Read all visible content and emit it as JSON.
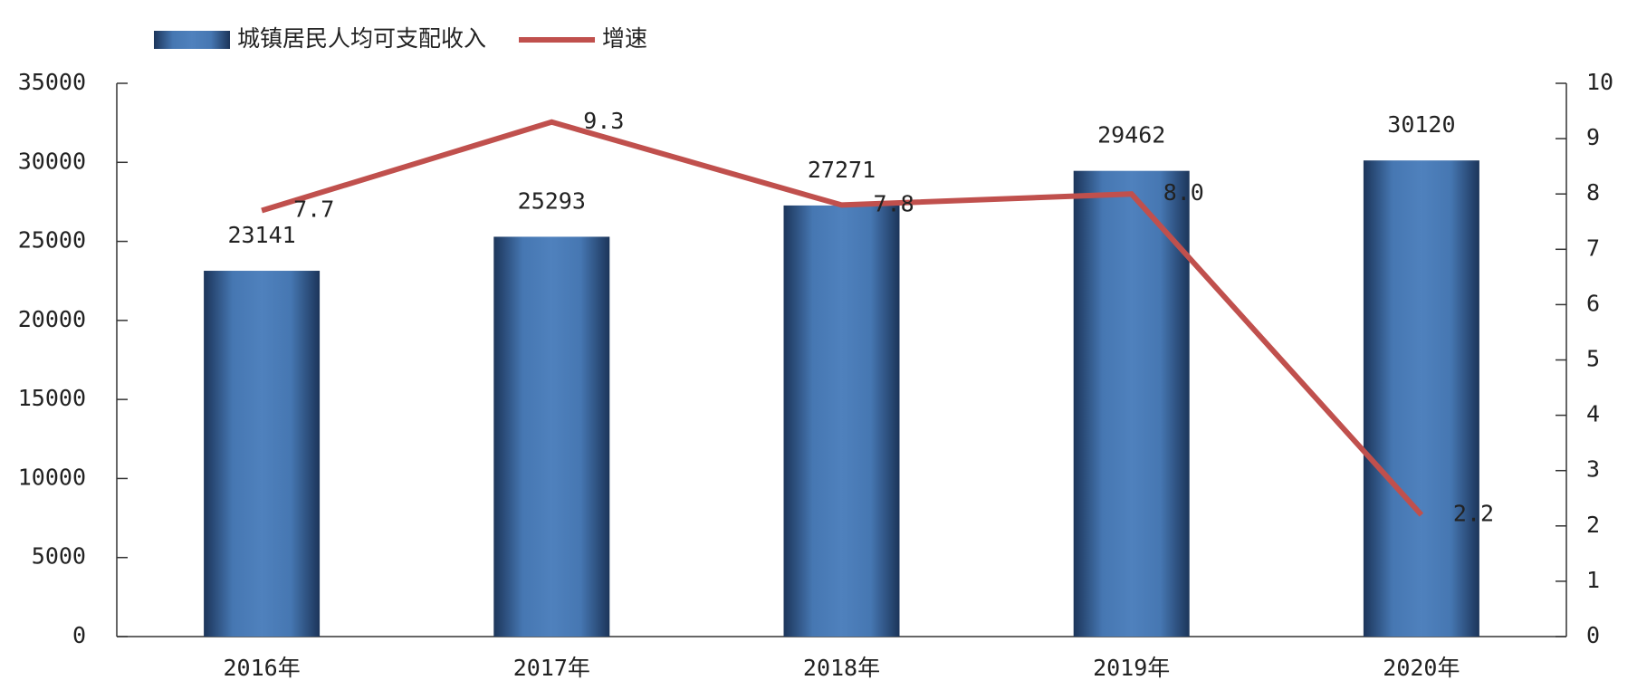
{
  "chart_data": {
    "type": "bar-line",
    "categories": [
      "2016年",
      "2017年",
      "2018年",
      "2019年",
      "2020年"
    ],
    "series": [
      {
        "name": "城镇居民人均可支配收入",
        "type": "bar",
        "color": "#4f81bd",
        "values": [
          23141,
          25293,
          27271,
          29462,
          30120
        ]
      },
      {
        "name": "增速",
        "type": "line",
        "axis": "y2",
        "color": "#c0504d",
        "values": [
          7.7,
          9.3,
          7.8,
          8.0,
          2.2
        ],
        "value_labels": [
          "7.7",
          "9.3",
          "7.8",
          "8.0",
          "2.2"
        ]
      }
    ],
    "ylim": [
      0,
      35000
    ],
    "yticks": [
      0,
      5000,
      10000,
      15000,
      20000,
      25000,
      30000,
      35000
    ],
    "y2lim": [
      0,
      10
    ],
    "y2ticks": [
      0,
      1,
      2,
      3,
      4,
      5,
      6,
      7,
      8,
      9,
      10
    ],
    "grid": false,
    "legend": "top"
  }
}
